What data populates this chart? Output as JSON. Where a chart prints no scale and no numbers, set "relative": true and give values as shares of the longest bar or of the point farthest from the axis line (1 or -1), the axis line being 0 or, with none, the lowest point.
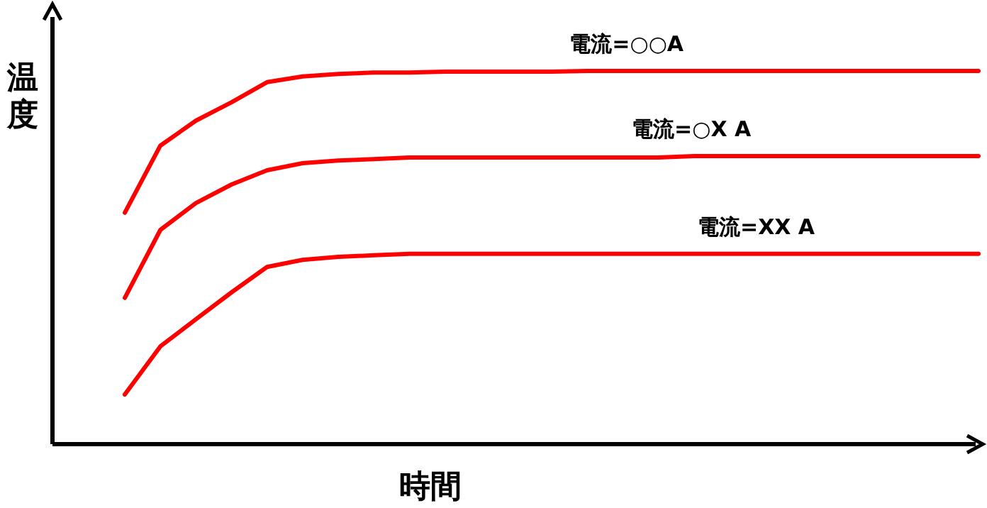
{
  "chart_data": {
    "type": "line",
    "relative": true,
    "xlabel": "時間",
    "ylabel": "温度",
    "legend": false,
    "marker": "none",
    "line_style": "solid",
    "categories": [
      null,
      null,
      null,
      null,
      null,
      null,
      null,
      null,
      null,
      null,
      null,
      null,
      null,
      null,
      null,
      null,
      null,
      null,
      null,
      null,
      null,
      null,
      null,
      null,
      null
    ],
    "series": [
      {
        "name": "電流=○○A",
        "color": "#ff0000",
        "values": [
          0.62,
          0.8,
          0.867,
          0.916,
          0.97,
          0.985,
          0.992,
          0.996,
          0.996,
          0.998,
          0.998,
          0.998,
          0.998,
          1,
          1,
          1,
          1,
          1,
          1,
          1,
          1,
          1,
          1,
          1,
          1
        ]
      },
      {
        "name": "電流=○X A",
        "color": "#ff0000",
        "values": [
          0.392,
          0.574,
          0.646,
          0.696,
          0.734,
          0.753,
          0.76,
          0.764,
          0.768,
          0.768,
          0.768,
          0.768,
          0.768,
          0.768,
          0.768,
          0.768,
          0.772,
          0.772,
          0.772,
          0.772,
          0.772,
          0.772,
          0.772,
          0.772,
          0.772
        ]
      },
      {
        "name": "電流=XX A",
        "color": "#ff0000",
        "values": [
          0.133,
          0.262,
          0.335,
          0.407,
          0.475,
          0.494,
          0.502,
          0.506,
          0.51,
          0.51,
          0.51,
          0.51,
          0.51,
          0.51,
          0.51,
          0.51,
          0.51,
          0.51,
          0.51,
          0.51,
          0.51,
          0.51,
          0.51,
          0.51,
          0.51
        ]
      }
    ]
  }
}
